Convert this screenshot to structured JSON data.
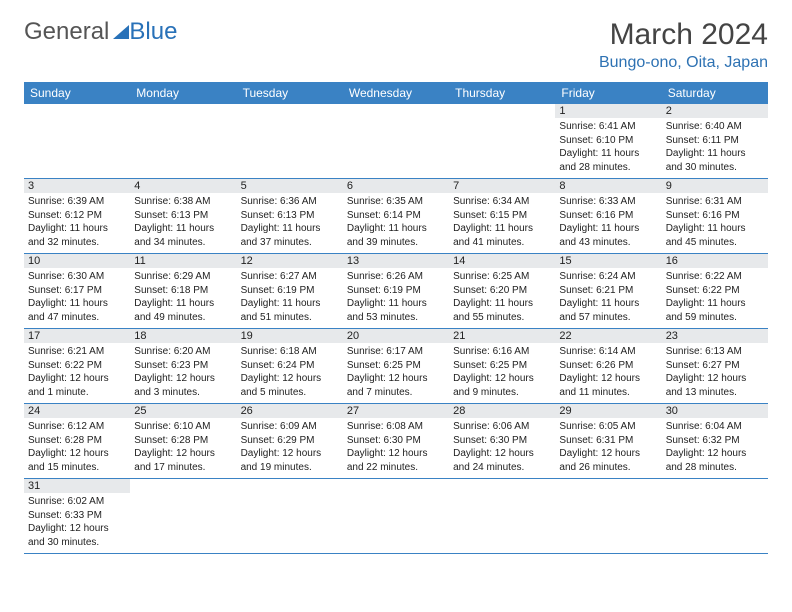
{
  "logo": {
    "word1": "General",
    "word2": "Blue"
  },
  "title": {
    "month": "March 2024",
    "location": "Bungo-ono, Oita, Japan"
  },
  "colors": {
    "header_bg": "#3a82c4",
    "header_text": "#ffffff",
    "daynum_bg": "#e7e9eb",
    "border": "#3a82c4",
    "logo_accent": "#2871b8",
    "location_text": "#2e72b3"
  },
  "weekdays": [
    "Sunday",
    "Monday",
    "Tuesday",
    "Wednesday",
    "Thursday",
    "Friday",
    "Saturday"
  ],
  "labels": {
    "sunrise": "Sunrise",
    "sunset": "Sunset",
    "daylight": "Daylight"
  },
  "days": {
    "1": {
      "sunrise": "6:41 AM",
      "sunset": "6:10 PM",
      "daylight": "11 hours and 28 minutes."
    },
    "2": {
      "sunrise": "6:40 AM",
      "sunset": "6:11 PM",
      "daylight": "11 hours and 30 minutes."
    },
    "3": {
      "sunrise": "6:39 AM",
      "sunset": "6:12 PM",
      "daylight": "11 hours and 32 minutes."
    },
    "4": {
      "sunrise": "6:38 AM",
      "sunset": "6:13 PM",
      "daylight": "11 hours and 34 minutes."
    },
    "5": {
      "sunrise": "6:36 AM",
      "sunset": "6:13 PM",
      "daylight": "11 hours and 37 minutes."
    },
    "6": {
      "sunrise": "6:35 AM",
      "sunset": "6:14 PM",
      "daylight": "11 hours and 39 minutes."
    },
    "7": {
      "sunrise": "6:34 AM",
      "sunset": "6:15 PM",
      "daylight": "11 hours and 41 minutes."
    },
    "8": {
      "sunrise": "6:33 AM",
      "sunset": "6:16 PM",
      "daylight": "11 hours and 43 minutes."
    },
    "9": {
      "sunrise": "6:31 AM",
      "sunset": "6:16 PM",
      "daylight": "11 hours and 45 minutes."
    },
    "10": {
      "sunrise": "6:30 AM",
      "sunset": "6:17 PM",
      "daylight": "11 hours and 47 minutes."
    },
    "11": {
      "sunrise": "6:29 AM",
      "sunset": "6:18 PM",
      "daylight": "11 hours and 49 minutes."
    },
    "12": {
      "sunrise": "6:27 AM",
      "sunset": "6:19 PM",
      "daylight": "11 hours and 51 minutes."
    },
    "13": {
      "sunrise": "6:26 AM",
      "sunset": "6:19 PM",
      "daylight": "11 hours and 53 minutes."
    },
    "14": {
      "sunrise": "6:25 AM",
      "sunset": "6:20 PM",
      "daylight": "11 hours and 55 minutes."
    },
    "15": {
      "sunrise": "6:24 AM",
      "sunset": "6:21 PM",
      "daylight": "11 hours and 57 minutes."
    },
    "16": {
      "sunrise": "6:22 AM",
      "sunset": "6:22 PM",
      "daylight": "11 hours and 59 minutes."
    },
    "17": {
      "sunrise": "6:21 AM",
      "sunset": "6:22 PM",
      "daylight": "12 hours and 1 minute."
    },
    "18": {
      "sunrise": "6:20 AM",
      "sunset": "6:23 PM",
      "daylight": "12 hours and 3 minutes."
    },
    "19": {
      "sunrise": "6:18 AM",
      "sunset": "6:24 PM",
      "daylight": "12 hours and 5 minutes."
    },
    "20": {
      "sunrise": "6:17 AM",
      "sunset": "6:25 PM",
      "daylight": "12 hours and 7 minutes."
    },
    "21": {
      "sunrise": "6:16 AM",
      "sunset": "6:25 PM",
      "daylight": "12 hours and 9 minutes."
    },
    "22": {
      "sunrise": "6:14 AM",
      "sunset": "6:26 PM",
      "daylight": "12 hours and 11 minutes."
    },
    "23": {
      "sunrise": "6:13 AM",
      "sunset": "6:27 PM",
      "daylight": "12 hours and 13 minutes."
    },
    "24": {
      "sunrise": "6:12 AM",
      "sunset": "6:28 PM",
      "daylight": "12 hours and 15 minutes."
    },
    "25": {
      "sunrise": "6:10 AM",
      "sunset": "6:28 PM",
      "daylight": "12 hours and 17 minutes."
    },
    "26": {
      "sunrise": "6:09 AM",
      "sunset": "6:29 PM",
      "daylight": "12 hours and 19 minutes."
    },
    "27": {
      "sunrise": "6:08 AM",
      "sunset": "6:30 PM",
      "daylight": "12 hours and 22 minutes."
    },
    "28": {
      "sunrise": "6:06 AM",
      "sunset": "6:30 PM",
      "daylight": "12 hours and 24 minutes."
    },
    "29": {
      "sunrise": "6:05 AM",
      "sunset": "6:31 PM",
      "daylight": "12 hours and 26 minutes."
    },
    "30": {
      "sunrise": "6:04 AM",
      "sunset": "6:32 PM",
      "daylight": "12 hours and 28 minutes."
    },
    "31": {
      "sunrise": "6:02 AM",
      "sunset": "6:33 PM",
      "daylight": "12 hours and 30 minutes."
    }
  },
  "grid": {
    "start_weekday_index": 5,
    "num_days": 31,
    "rows": 6,
    "cols": 7
  }
}
